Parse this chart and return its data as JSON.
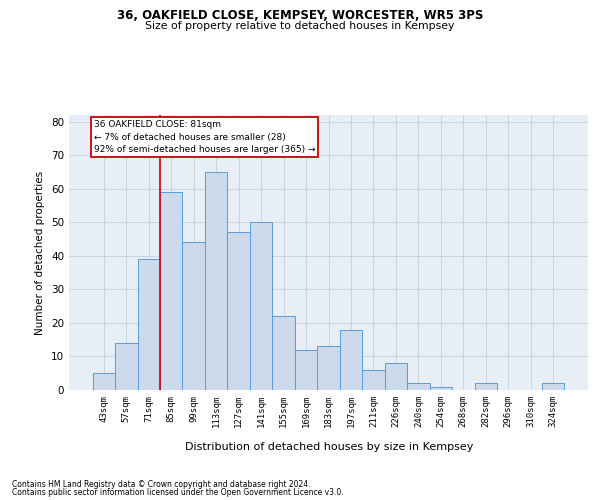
{
  "title1": "36, OAKFIELD CLOSE, KEMPSEY, WORCESTER, WR5 3PS",
  "title2": "Size of property relative to detached houses in Kempsey",
  "xlabel": "Distribution of detached houses by size in Kempsey",
  "ylabel": "Number of detached properties",
  "footnote1": "Contains HM Land Registry data © Crown copyright and database right 2024.",
  "footnote2": "Contains public sector information licensed under the Open Government Licence v3.0.",
  "bar_labels": [
    "43sqm",
    "57sqm",
    "71sqm",
    "85sqm",
    "99sqm",
    "113sqm",
    "127sqm",
    "141sqm",
    "155sqm",
    "169sqm",
    "183sqm",
    "197sqm",
    "211sqm",
    "226sqm",
    "240sqm",
    "254sqm",
    "268sqm",
    "282sqm",
    "296sqm",
    "310sqm",
    "324sqm"
  ],
  "bar_values": [
    5,
    14,
    39,
    59,
    44,
    65,
    47,
    50,
    22,
    12,
    13,
    18,
    6,
    8,
    2,
    1,
    0,
    2,
    0,
    0,
    2
  ],
  "bar_color": "#ccdaec",
  "bar_edge_color": "#5b9bd5",
  "vline_x": 2.5,
  "vline_color": "#cc0000",
  "annotation_line1": "36 OAKFIELD CLOSE: 81sqm",
  "annotation_line2": "← 7% of detached houses are smaller (28)",
  "annotation_line3": "92% of semi-detached houses are larger (365) →",
  "annotation_box_facecolor": "#ffffff",
  "annotation_box_edgecolor": "#cc0000",
  "ylim": [
    0,
    82
  ],
  "yticks": [
    0,
    10,
    20,
    30,
    40,
    50,
    60,
    70,
    80
  ],
  "grid_color": "#c8d4e0",
  "background_color": "#e8eef6"
}
